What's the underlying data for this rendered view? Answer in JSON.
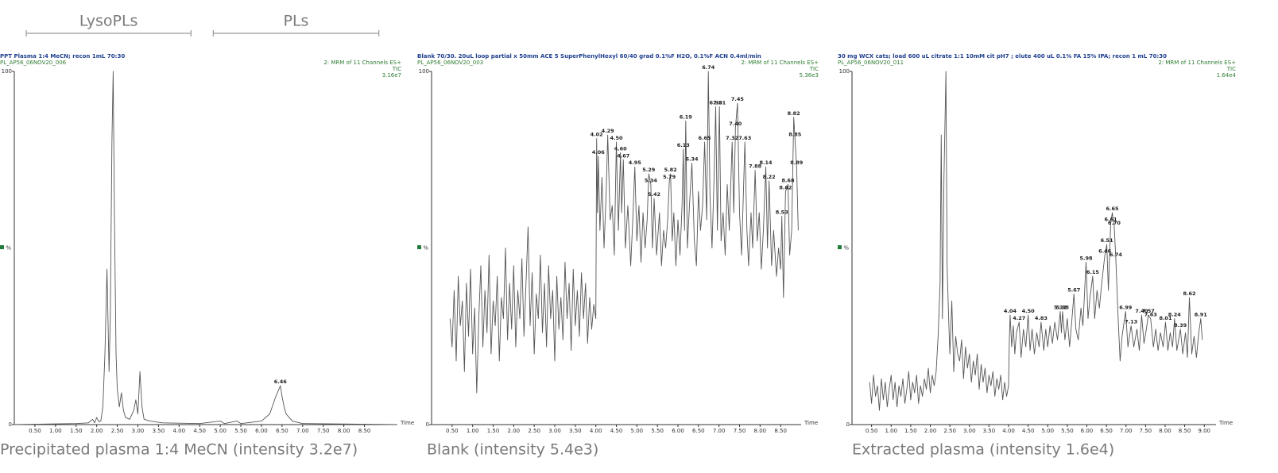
{
  "chart_data": [
    {
      "type": "line",
      "title": "PPT Plasma 1:4 MeCN; recon 1mL 70:30",
      "sample_id": "PL_AP56_06NOV20_006",
      "channel": "2: MRM of 11 Channels ES+",
      "trace": "TIC",
      "intensity": "3.16e7",
      "caption": "Precipitated plasma 1:4 MeCN (intensity 3.2e7)",
      "y_label": "%",
      "x_label": "Time",
      "color": "#555555",
      "regions": [
        {
          "label": "LysoPLs",
          "x": [
            0.29,
            4.29
          ]
        },
        {
          "label": "PLs",
          "x": [
            4.83,
            8.85
          ]
        }
      ],
      "xlim": [
        0,
        9.3
      ],
      "ylim": [
        0,
        100
      ],
      "yticks": [
        0,
        100
      ],
      "xticks": [
        {
          "value": 0.5,
          "label": "0.50"
        },
        {
          "value": 1,
          "label": "1.00"
        },
        {
          "value": 1.5,
          "label": "1.50"
        },
        {
          "value": 2,
          "label": "2.00"
        },
        {
          "value": 2.5,
          "label": "2.50"
        },
        {
          "value": 3,
          "label": "3.00"
        },
        {
          "value": 3.5,
          "label": "3.50"
        },
        {
          "value": 4,
          "label": "4.00"
        },
        {
          "value": 4.5,
          "label": "4.50"
        },
        {
          "value": 5,
          "label": "5.00"
        },
        {
          "value": 5.5,
          "label": "5.50"
        },
        {
          "value": 6,
          "label": "6.00"
        },
        {
          "value": 6.5,
          "label": "6.50"
        },
        {
          "value": 7,
          "label": "7.00"
        },
        {
          "value": 7.5,
          "label": "7.50"
        },
        {
          "value": 8,
          "label": "8.00"
        },
        {
          "value": 8.5,
          "label": "8.50"
        }
      ],
      "x": [
        0,
        1.5,
        1.8,
        1.9,
        1.95,
        2.0,
        2.05,
        2.1,
        2.15,
        2.2,
        2.25,
        2.3,
        2.33,
        2.37,
        2.4,
        2.43,
        2.47,
        2.5,
        2.55,
        2.6,
        2.65,
        2.7,
        2.8,
        2.9,
        2.95,
        3.0,
        3.05,
        3.1,
        3.15,
        3.3,
        3.6,
        4.5,
        5.0,
        5.1,
        5.4,
        5.5,
        6.0,
        6.2,
        6.35,
        6.46,
        6.5,
        6.55,
        6.6,
        6.75,
        7.0,
        9.3
      ],
      "values": [
        0,
        0.3,
        0.5,
        1.5,
        0.5,
        2,
        0.8,
        1,
        5,
        20,
        44,
        15,
        30,
        80,
        100,
        60,
        20,
        10,
        5,
        9,
        4,
        2,
        1.5,
        4,
        7,
        3,
        15,
        5,
        1.5,
        1,
        0.5,
        0.3,
        1,
        0.3,
        1,
        0.3,
        1,
        3,
        8,
        11,
        8,
        5,
        3,
        1,
        0.3,
        0
      ],
      "peaks": [
        {
          "x": 6.46,
          "y": 11
        }
      ]
    },
    {
      "type": "line",
      "title": "Blank 70/30. 20uL loop partial x 50mm ACE 5 SuperPhenylHexyl 60/40 grad 0.1%F H2O, 0.1%F ACN 0.4ml/min",
      "sample_id": "PL_AP56_06NOV20_003",
      "channel": "2: MRM of 11 Channels ES+",
      "trace": "TIC",
      "intensity": "5.36e3",
      "caption": "Blank (intensity 5.4e3)",
      "y_label": "%",
      "x_label": "Time",
      "color": "#555555",
      "xlim": [
        0,
        9.0
      ],
      "ylim": [
        0,
        100
      ],
      "yticks": [
        0,
        100
      ],
      "xticks": [
        {
          "value": 0.5,
          "label": "0.50"
        },
        {
          "value": 1,
          "label": "1.00"
        },
        {
          "value": 1.5,
          "label": "1.50"
        },
        {
          "value": 2,
          "label": "2.00"
        },
        {
          "value": 2.5,
          "label": "2.50"
        },
        {
          "value": 3,
          "label": "3.00"
        },
        {
          "value": 3.5,
          "label": "3.50"
        },
        {
          "value": 4,
          "label": "4.00"
        },
        {
          "value": 4.5,
          "label": "4.50"
        },
        {
          "value": 5,
          "label": "5.00"
        },
        {
          "value": 5.5,
          "label": "5.50"
        },
        {
          "value": 6,
          "label": "6.00"
        },
        {
          "value": 6.5,
          "label": "6.50"
        },
        {
          "value": 7,
          "label": "7.00"
        },
        {
          "value": 7.5,
          "label": "7.50"
        },
        {
          "value": 8,
          "label": "8.00"
        },
        {
          "value": 8.5,
          "label": "8.50"
        }
      ],
      "x": [
        0.45,
        0.5,
        0.55,
        0.6,
        0.65,
        0.7,
        0.75,
        0.8,
        0.85,
        0.9,
        0.95,
        1.0,
        1.05,
        1.1,
        1.15,
        1.2,
        1.25,
        1.3,
        1.35,
        1.4,
        1.45,
        1.5,
        1.55,
        1.6,
        1.65,
        1.7,
        1.75,
        1.8,
        1.85,
        1.9,
        1.95,
        2.0,
        2.05,
        2.1,
        2.15,
        2.2,
        2.25,
        2.3,
        2.35,
        2.4,
        2.45,
        2.5,
        2.55,
        2.6,
        2.65,
        2.7,
        2.75,
        2.8,
        2.85,
        2.9,
        2.95,
        3.0,
        3.05,
        3.1,
        3.15,
        3.2,
        3.25,
        3.3,
        3.35,
        3.4,
        3.45,
        3.5,
        3.55,
        3.6,
        3.65,
        3.7,
        3.75,
        3.8,
        3.85,
        3.9,
        3.95,
        4.0,
        4.02,
        4.04,
        4.06,
        4.1,
        4.15,
        4.2,
        4.25,
        4.29,
        4.35,
        4.4,
        4.45,
        4.5,
        4.55,
        4.6,
        4.63,
        4.67,
        4.72,
        4.78,
        4.85,
        4.9,
        4.95,
        5.0,
        5.05,
        5.1,
        5.15,
        5.2,
        5.25,
        5.29,
        5.34,
        5.38,
        5.42,
        5.48,
        5.55,
        5.6,
        5.65,
        5.7,
        5.75,
        5.79,
        5.82,
        5.86,
        5.9,
        5.95,
        6.0,
        6.05,
        6.1,
        6.13,
        6.16,
        6.19,
        6.23,
        6.28,
        6.34,
        6.4,
        6.45,
        6.5,
        6.55,
        6.6,
        6.65,
        6.7,
        6.74,
        6.78,
        6.83,
        6.88,
        6.92,
        6.96,
        7.01,
        7.05,
        7.1,
        7.15,
        7.2,
        7.25,
        7.32,
        7.36,
        7.4,
        7.45,
        7.5,
        7.55,
        7.63,
        7.68,
        7.72,
        7.78,
        7.82,
        7.88,
        7.93,
        7.98,
        8.03,
        8.08,
        8.14,
        8.18,
        8.22,
        8.28,
        8.33,
        8.4,
        8.45,
        8.5,
        8.53,
        8.57,
        8.62,
        8.68,
        8.72,
        8.77,
        8.82,
        8.85,
        8.89,
        8.93
      ],
      "values": [
        30,
        22,
        38,
        18,
        42,
        28,
        35,
        15,
        40,
        25,
        44,
        20,
        33,
        9,
        30,
        45,
        22,
        38,
        26,
        48,
        20,
        35,
        28,
        42,
        18,
        36,
        30,
        50,
        24,
        40,
        27,
        45,
        22,
        38,
        30,
        47,
        25,
        40,
        56,
        28,
        43,
        20,
        37,
        30,
        48,
        26,
        40,
        22,
        45,
        30,
        38,
        18,
        42,
        27,
        36,
        24,
        46,
        30,
        40,
        21,
        44,
        28,
        38,
        25,
        43,
        30,
        40,
        23,
        36,
        27,
        34,
        30,
        81,
        60,
        76,
        55,
        70,
        50,
        65,
        82,
        58,
        62,
        48,
        80,
        55,
        77,
        60,
        75,
        50,
        62,
        45,
        58,
        73,
        52,
        62,
        46,
        60,
        50,
        58,
        71,
        68,
        50,
        64,
        48,
        60,
        45,
        55,
        50,
        58,
        69,
        71,
        52,
        60,
        45,
        58,
        48,
        62,
        78,
        55,
        86,
        50,
        62,
        74,
        52,
        45,
        66,
        55,
        62,
        80,
        58,
        100,
        65,
        50,
        70,
        90,
        55,
        90,
        52,
        60,
        48,
        68,
        55,
        80,
        60,
        84,
        91,
        60,
        48,
        80,
        55,
        45,
        60,
        50,
        72,
        52,
        60,
        44,
        55,
        73,
        50,
        69,
        45,
        55,
        42,
        50,
        44,
        59,
        36,
        66,
        68,
        48,
        55,
        87,
        81,
        73,
        55
      ],
      "peaks": [
        {
          "x": 4.02,
          "y": 81
        },
        {
          "x": 4.06,
          "y": 76
        },
        {
          "x": 4.29,
          "y": 82
        },
        {
          "x": {
            "value": 4.5,
            "label": "4.50"
          },
          "y": 80
        },
        {
          "x": {
            "value": 4.6,
            "label": "4.60"
          },
          "y": 77
        },
        {
          "x": 4.67,
          "y": 75
        },
        {
          "x": 4.95,
          "y": 73
        },
        {
          "x": 5.29,
          "y": 71
        },
        {
          "x": 5.34,
          "y": 68
        },
        {
          "x": 5.42,
          "y": 64
        },
        {
          "x": 5.79,
          "y": 69
        },
        {
          "x": 5.82,
          "y": 71
        },
        {
          "x": 6.13,
          "y": 78
        },
        {
          "x": 6.19,
          "y": 86
        },
        {
          "x": 6.34,
          "y": 74
        },
        {
          "x": 6.65,
          "y": 80
        },
        {
          "x": 6.74,
          "y": 100
        },
        {
          "x": 6.92,
          "y": 90
        },
        {
          "x": 7.01,
          "y": 90
        },
        {
          "x": 7.32,
          "y": 80
        },
        {
          "x": {
            "value": 7.4,
            "label": "7.40"
          },
          "y": 84
        },
        {
          "x": 7.45,
          "y": 91
        },
        {
          "x": 7.63,
          "y": 80
        },
        {
          "x": 7.88,
          "y": 72
        },
        {
          "x": 8.14,
          "y": 73
        },
        {
          "x": 8.22,
          "y": 69
        },
        {
          "x": 8.53,
          "y": 59
        },
        {
          "x": 8.62,
          "y": 66
        },
        {
          "x": 8.68,
          "y": 68
        },
        {
          "x": 8.82,
          "y": 87
        },
        {
          "x": 8.85,
          "y": 81
        },
        {
          "x": 8.89,
          "y": 73
        }
      ]
    },
    {
      "type": "line",
      "title": "30 mg WCX cats; load 600 uL citrate 1:1 10mM cit pH7 ; elute 400 uL 0.1% FA 15% IPA; recon 1 mL 70:30",
      "sample_id": "PL_AP56_06NOV20_011",
      "channel": "2: MRM of 11 Channels ES+",
      "trace": "TIC",
      "intensity": "1.64e4",
      "caption": "Extracted plasma (intensity 1.6e4)",
      "y_label": "%",
      "x_label": "Time",
      "color": "#555555",
      "xlim": [
        0,
        9.3
      ],
      "ylim": [
        0,
        100
      ],
      "yticks": [
        0,
        100
      ],
      "xticks": [
        {
          "value": 0.5,
          "label": "0.50"
        },
        {
          "value": 1,
          "label": "1.00"
        },
        {
          "value": 1.5,
          "label": "1.50"
        },
        {
          "value": 2,
          "label": "2.00"
        },
        {
          "value": 2.5,
          "label": "2.50"
        },
        {
          "value": 3,
          "label": "3.00"
        },
        {
          "value": 3.5,
          "label": "3.50"
        },
        {
          "value": 4,
          "label": "4.00"
        },
        {
          "value": 4.5,
          "label": "4.50"
        },
        {
          "value": 5,
          "label": "5.00"
        },
        {
          "value": 5.5,
          "label": "5.50"
        },
        {
          "value": 6,
          "label": "6.00"
        },
        {
          "value": 6.5,
          "label": "6.50"
        },
        {
          "value": 7,
          "label": "7.00"
        },
        {
          "value": 7.5,
          "label": "7.50"
        },
        {
          "value": 8,
          "label": "8.00"
        },
        {
          "value": 8.5,
          "label": "8.50"
        },
        {
          "value": 9,
          "label": "9.00"
        }
      ],
      "x": [
        0.45,
        0.5,
        0.55,
        0.6,
        0.65,
        0.7,
        0.75,
        0.8,
        0.85,
        0.9,
        0.95,
        1.0,
        1.05,
        1.1,
        1.15,
        1.2,
        1.25,
        1.3,
        1.35,
        1.4,
        1.45,
        1.5,
        1.55,
        1.6,
        1.65,
        1.7,
        1.75,
        1.8,
        1.85,
        1.9,
        1.95,
        2.0,
        2.05,
        2.1,
        2.15,
        2.2,
        2.25,
        2.28,
        2.31,
        2.35,
        2.4,
        2.43,
        2.47,
        2.5,
        2.55,
        2.6,
        2.65,
        2.7,
        2.75,
        2.8,
        2.85,
        2.9,
        2.95,
        3.0,
        3.05,
        3.1,
        3.15,
        3.2,
        3.25,
        3.3,
        3.35,
        3.4,
        3.45,
        3.5,
        3.55,
        3.6,
        3.65,
        3.7,
        3.75,
        3.8,
        3.85,
        3.9,
        3.95,
        4.0,
        4.02,
        4.04,
        4.08,
        4.12,
        4.16,
        4.2,
        4.27,
        4.32,
        4.38,
        4.44,
        4.5,
        4.55,
        4.6,
        4.66,
        4.72,
        4.78,
        4.83,
        4.9,
        4.95,
        5.0,
        5.06,
        5.12,
        5.18,
        5.25,
        5.32,
        5.35,
        5.38,
        5.44,
        5.5,
        5.56,
        5.62,
        5.67,
        5.72,
        5.78,
        5.85,
        5.9,
        5.98,
        6.03,
        6.08,
        6.15,
        6.2,
        6.26,
        6.32,
        6.38,
        6.46,
        6.51,
        6.55,
        6.61,
        6.65,
        6.7,
        6.74,
        6.8,
        6.85,
        6.9,
        6.99,
        7.05,
        7.13,
        7.2,
        7.28,
        7.34,
        7.4,
        7.46,
        7.52,
        7.57,
        7.63,
        7.7,
        7.76,
        7.82,
        7.88,
        7.95,
        8.01,
        8.07,
        8.13,
        8.19,
        8.24,
        8.3,
        8.39,
        8.45,
        8.52,
        8.57,
        8.62,
        8.68,
        8.74,
        8.8,
        8.86,
        8.91,
        8.95
      ],
      "values": [
        12,
        6,
        14,
        8,
        11,
        4,
        13,
        7,
        12,
        5,
        10,
        14,
        7,
        12,
        5,
        11,
        8,
        13,
        6,
        10,
        15,
        7,
        12,
        9,
        14,
        6,
        11,
        8,
        13,
        10,
        16,
        9,
        14,
        11,
        15,
        25,
        40,
        82,
        30,
        70,
        100,
        45,
        30,
        20,
        35,
        15,
        25,
        20,
        18,
        24,
        13,
        22,
        16,
        20,
        12,
        18,
        14,
        20,
        10,
        17,
        12,
        16,
        9,
        14,
        11,
        15,
        8,
        13,
        10,
        14,
        7,
        12,
        8,
        11,
        24,
        31,
        22,
        28,
        20,
        26,
        29,
        19,
        27,
        22,
        31,
        21,
        27,
        20,
        26,
        22,
        29,
        21,
        27,
        22,
        28,
        23,
        29,
        24,
        32,
        26,
        32,
        24,
        30,
        22,
        30,
        37,
        27,
        24,
        33,
        28,
        46,
        30,
        36,
        42,
        30,
        38,
        33,
        40,
        48,
        51,
        38,
        57,
        60,
        56,
        47,
        30,
        18,
        25,
        32,
        22,
        28,
        22,
        27,
        21,
        31,
        23,
        27,
        31,
        30,
        22,
        27,
        21,
        26,
        22,
        29,
        21,
        26,
        22,
        30,
        21,
        27,
        20,
        26,
        19,
        36,
        20,
        25,
        19,
        26,
        30,
        24
      ],
      "peaks": [
        {
          "x": 4.04,
          "y": 31
        },
        {
          "x": 4.27,
          "y": 29
        },
        {
          "x": {
            "value": 4.5,
            "label": "4.50"
          },
          "y": 31
        },
        {
          "x": 4.83,
          "y": 29
        },
        {
          "x": 5.32,
          "y": 32
        },
        {
          "x": 5.38,
          "y": 32
        },
        {
          "x": 5.67,
          "y": 37
        },
        {
          "x": 5.98,
          "y": 46
        },
        {
          "x": 6.15,
          "y": 42
        },
        {
          "x": 6.46,
          "y": 48
        },
        {
          "x": 6.51,
          "y": 51
        },
        {
          "x": 6.61,
          "y": 57
        },
        {
          "x": 6.65,
          "y": 60
        },
        {
          "x": {
            "value": 6.7,
            "label": "6.70"
          },
          "y": 56
        },
        {
          "x": 6.74,
          "y": 47
        },
        {
          "x": 6.99,
          "y": 32
        },
        {
          "x": 7.13,
          "y": 28
        },
        {
          "x": {
            "value": 7.4,
            "label": "7.40"
          },
          "y": 31
        },
        {
          "x": 7.57,
          "y": 31
        },
        {
          "x": 7.63,
          "y": 30
        },
        {
          "x": 8.01,
          "y": 29
        },
        {
          "x": 8.24,
          "y": 30
        },
        {
          "x": 8.39,
          "y": 27
        },
        {
          "x": 8.62,
          "y": 36
        },
        {
          "x": 8.91,
          "y": 30
        }
      ]
    }
  ]
}
